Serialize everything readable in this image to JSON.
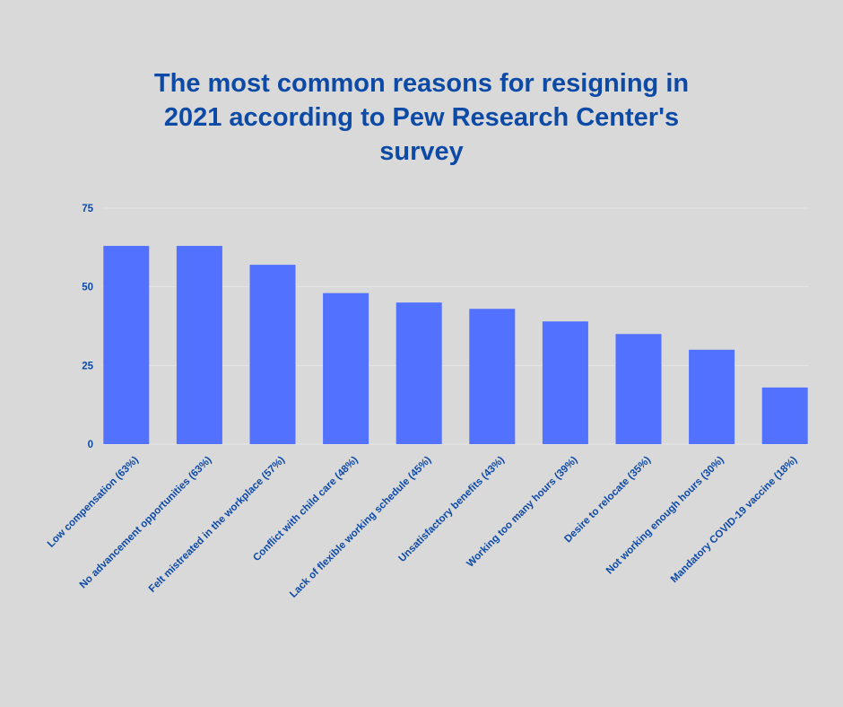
{
  "chart_data": {
    "type": "bar",
    "title": "The most common reasons for resigning in 2021 according to Pew Research Center's survey",
    "categories": [
      "Low compensation (63%)",
      "No advancement opportunities (63%)",
      "Felt mistreated in the workplace (57%)",
      "Conflict with child care (48%)",
      "Lack of flexible working schedule (45%)",
      "Unsatisfactory benefits (43%)",
      "Working too many hours (39%)",
      "Desire to relocate (35%)",
      "Not working enough hours (30%)",
      "Mandatory COVID-19 vaccine (18%)"
    ],
    "values": [
      63,
      63,
      57,
      48,
      45,
      43,
      39,
      35,
      30,
      18
    ],
    "color": "#5271ff",
    "ylim": [
      0,
      75
    ],
    "yticks": [
      0,
      25,
      50,
      75
    ],
    "grid": true
  }
}
